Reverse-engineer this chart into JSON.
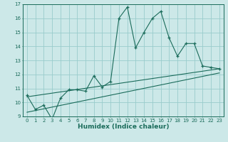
{
  "title": "",
  "xlabel": "Humidex (Indice chaleur)",
  "bg_color": "#cce8e8",
  "grid_color": "#99cccc",
  "line_color": "#1a6b5a",
  "xlim": [
    -0.5,
    23.5
  ],
  "ylim": [
    9,
    17
  ],
  "xticks": [
    0,
    1,
    2,
    3,
    4,
    5,
    6,
    7,
    8,
    9,
    10,
    11,
    12,
    13,
    14,
    15,
    16,
    17,
    18,
    19,
    20,
    21,
    22,
    23
  ],
  "yticks": [
    9,
    10,
    11,
    12,
    13,
    14,
    15,
    16,
    17
  ],
  "series1_x": [
    0,
    1,
    2,
    3,
    4,
    5,
    6,
    7,
    8,
    9,
    10,
    11,
    12,
    13,
    14,
    15,
    16,
    17,
    18,
    19,
    20,
    21,
    22,
    23
  ],
  "series1_y": [
    10.5,
    9.5,
    9.8,
    8.8,
    10.3,
    10.9,
    10.9,
    10.8,
    11.9,
    11.1,
    11.5,
    16.0,
    16.8,
    13.9,
    15.0,
    16.0,
    16.5,
    14.6,
    13.3,
    14.2,
    14.2,
    12.6,
    12.5,
    12.4
  ],
  "trend1_x": [
    0,
    23
  ],
  "trend1_y": [
    10.4,
    12.4
  ],
  "trend2_x": [
    0,
    23
  ],
  "trend2_y": [
    9.3,
    12.1
  ]
}
